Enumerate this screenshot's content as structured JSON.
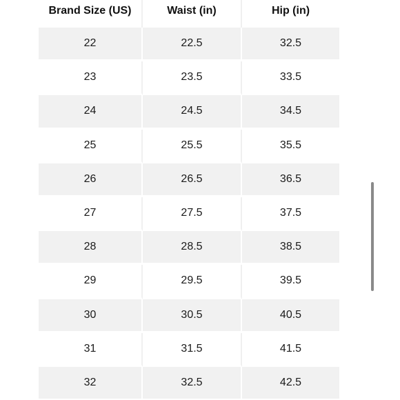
{
  "table": {
    "headers": [
      "Brand Size (US)",
      "Waist (in)",
      "Hip (in)"
    ],
    "rows": [
      [
        "22",
        "22.5",
        "32.5"
      ],
      [
        "23",
        "23.5",
        "33.5"
      ],
      [
        "24",
        "24.5",
        "34.5"
      ],
      [
        "25",
        "25.5",
        "35.5"
      ],
      [
        "26",
        "26.5",
        "36.5"
      ],
      [
        "27",
        "27.5",
        "37.5"
      ],
      [
        "28",
        "28.5",
        "38.5"
      ],
      [
        "29",
        "29.5",
        "39.5"
      ],
      [
        "30",
        "30.5",
        "40.5"
      ],
      [
        "31",
        "31.5",
        "41.5"
      ],
      [
        "32",
        "32.5",
        "42.5"
      ]
    ]
  },
  "colors": {
    "shaded_row": "#f1f1f1",
    "text": "#1a1a1a",
    "scrollbar": "#8a8a8a"
  }
}
